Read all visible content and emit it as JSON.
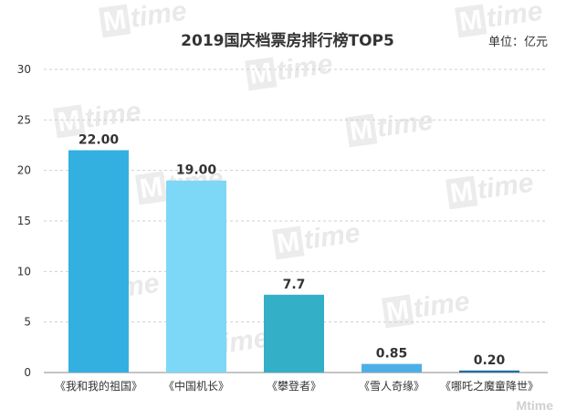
{
  "chart_data": {
    "type": "bar",
    "title": "2019国庆档票房排行榜TOP5",
    "unit_label": "单位：亿元",
    "categories": [
      "《我和我的祖国》",
      "《中国机长》",
      "《攀登者》",
      "《雪人奇缘》",
      "《哪吒之魔童降世》"
    ],
    "values": [
      22.0,
      19.0,
      7.7,
      0.85,
      0.2
    ],
    "value_labels": [
      "22.00",
      "19.00",
      "7.7",
      "0.85",
      "0.20"
    ],
    "bar_colors": [
      "#33b0e0",
      "#7dd7f7",
      "#34afc8",
      "#4dafe6",
      "#1d6fa8"
    ],
    "ylim": [
      0,
      30
    ],
    "yticks": [
      0,
      5,
      10,
      15,
      20,
      25,
      30
    ],
    "grid": true,
    "legend": "none"
  },
  "watermark": {
    "text": "time",
    "logo_text": "Mtime"
  }
}
